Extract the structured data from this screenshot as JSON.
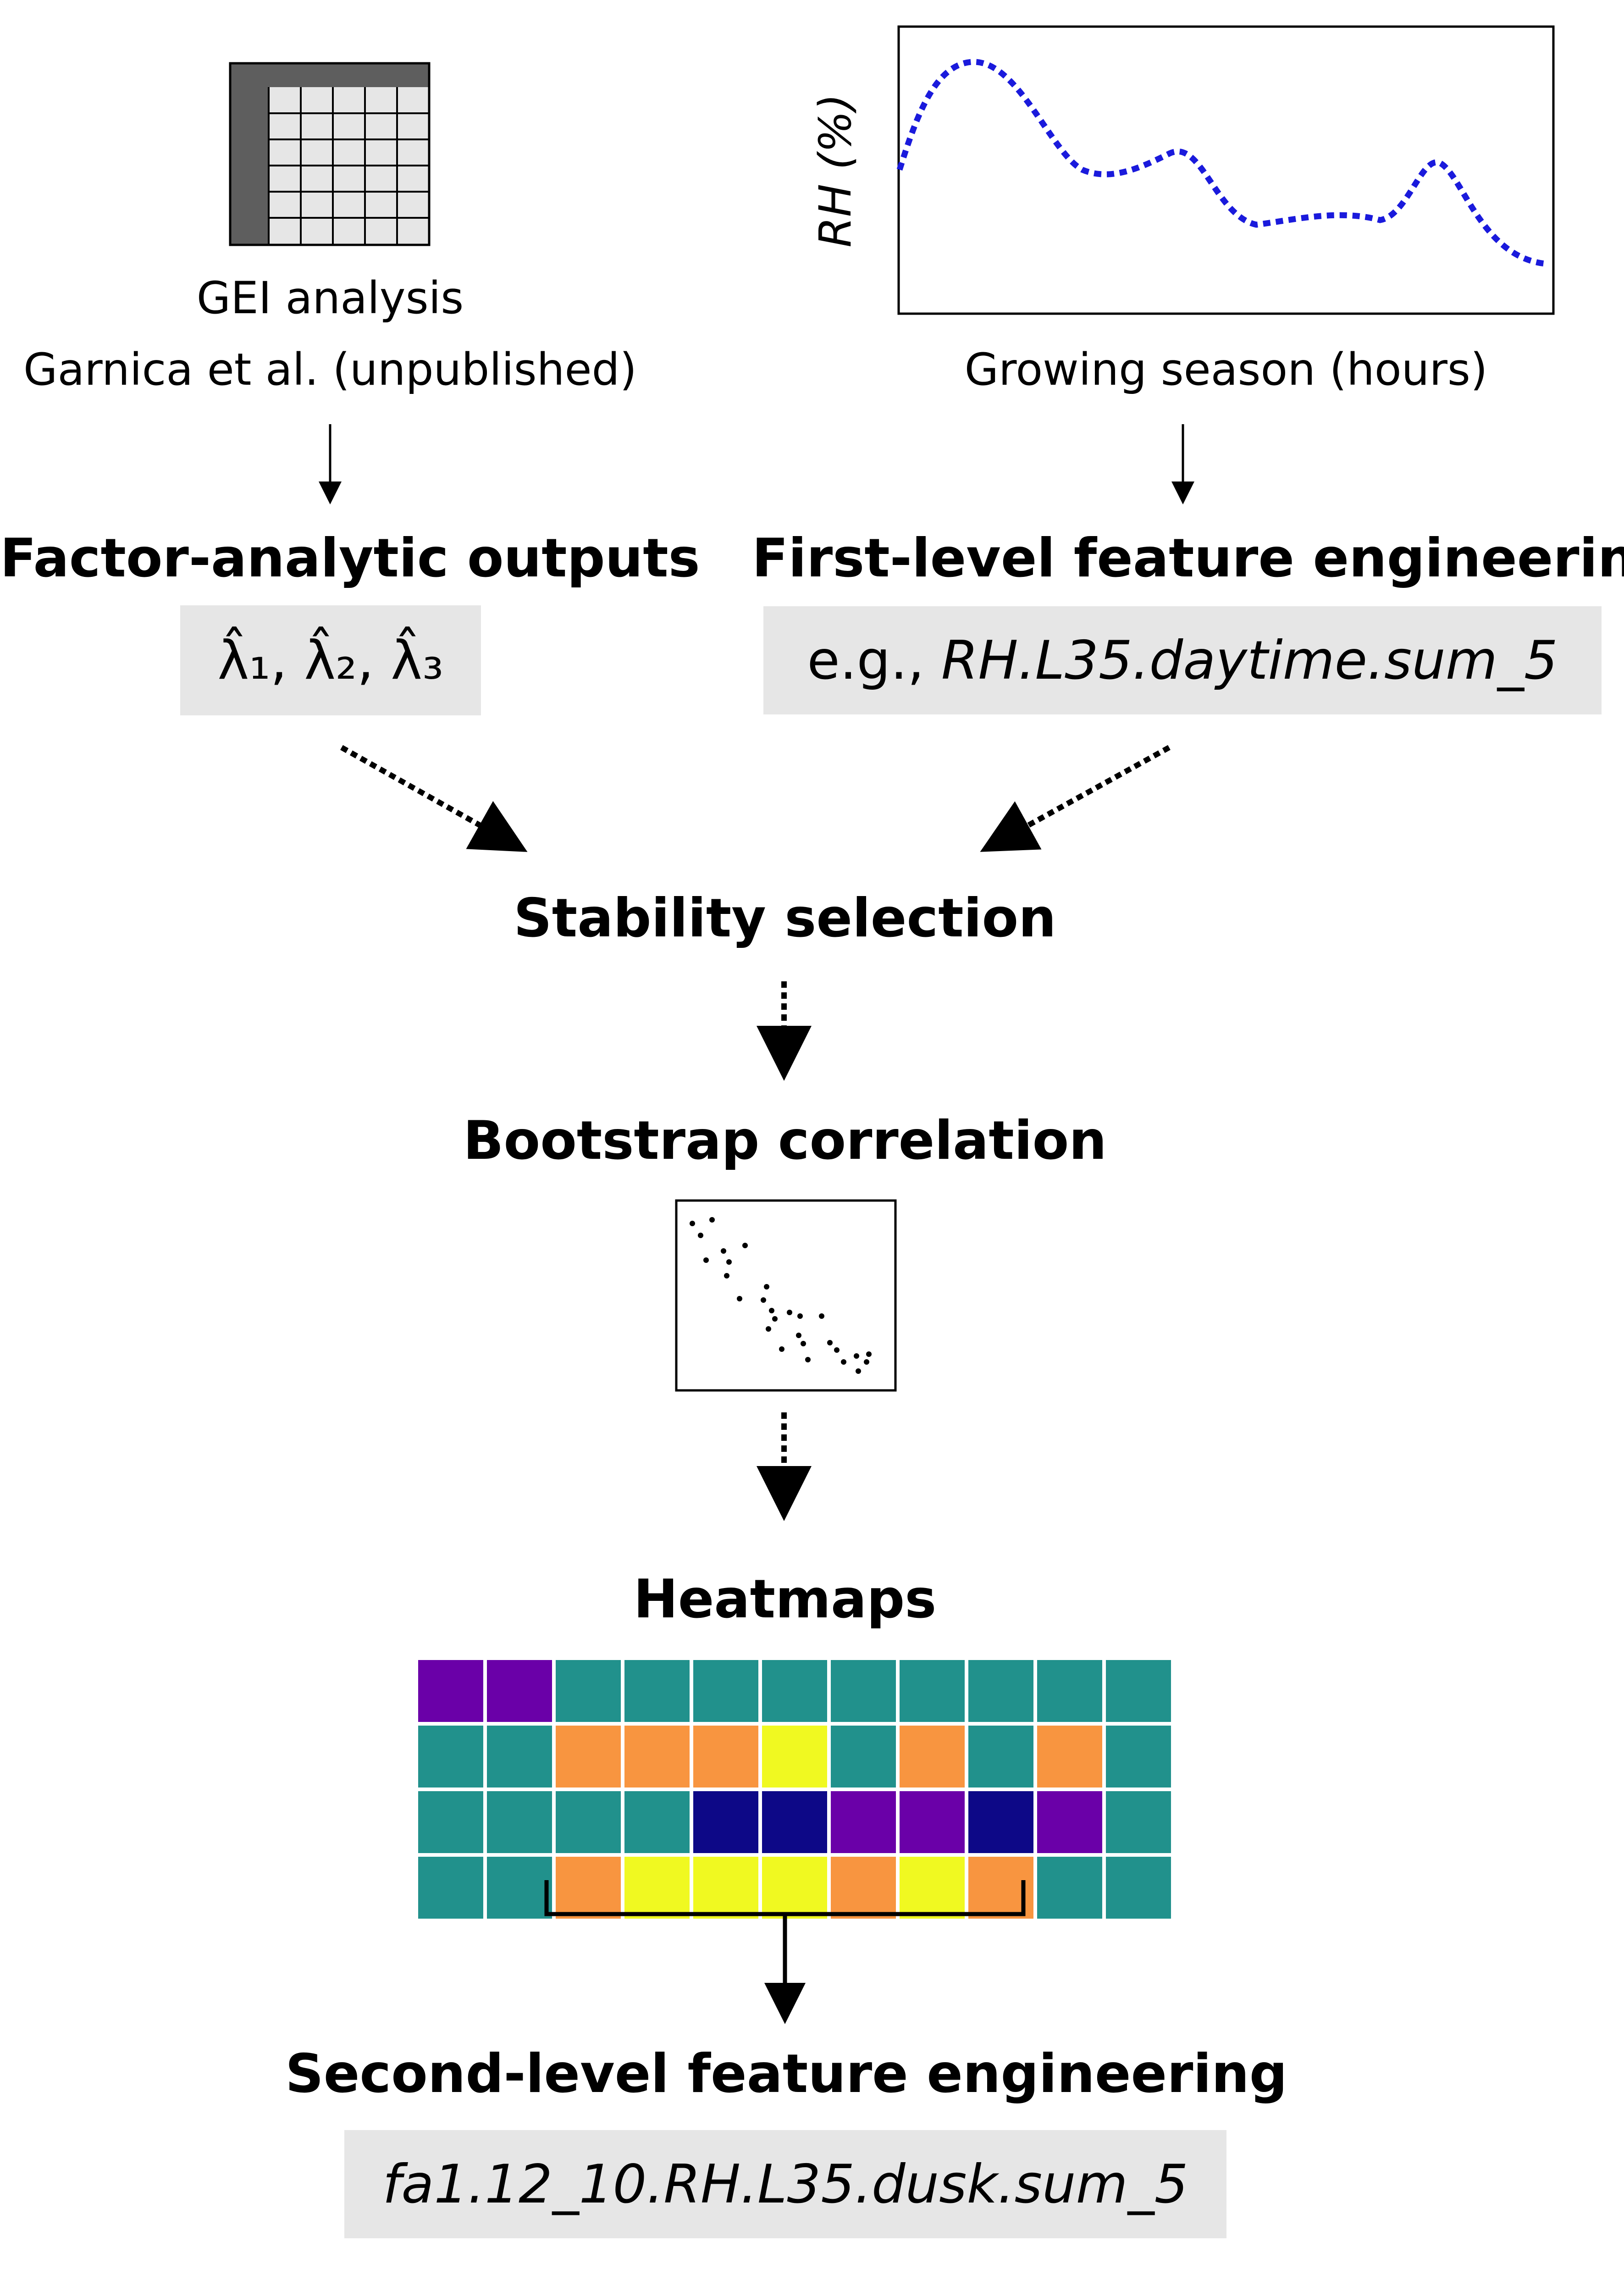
{
  "gei": {
    "title": "GEI analysis",
    "source": "Garnica et al. (unpublished)"
  },
  "rh_plot": {
    "ylabel": "RH (%)",
    "xlabel": "Growing season (hours)",
    "curve_color": "#1a1adc"
  },
  "factor_outputs": {
    "title": "Factor-analytic outputs",
    "formula": "λ̂₁, λ̂₂, λ̂₃"
  },
  "first_level": {
    "title": "First-level feature engineering",
    "prefix": "e.g., ",
    "example": "RH.L35.daytime.sum_5"
  },
  "stability": {
    "title": "Stability selection"
  },
  "bootstrap": {
    "title": "Bootstrap correlation"
  },
  "heatmaps": {
    "title": "Heatmaps",
    "palette": {
      "purple": "#6a00a8",
      "teal": "#21918c",
      "orange": "#f89540",
      "yellow": "#f0f921",
      "navy": "#0d0887"
    },
    "grid": [
      [
        "purple",
        "purple",
        "teal",
        "teal",
        "teal",
        "teal",
        "teal",
        "teal",
        "teal",
        "teal",
        "teal"
      ],
      [
        "teal",
        "teal",
        "orange",
        "orange",
        "orange",
        "yellow",
        "teal",
        "orange",
        "teal",
        "orange",
        "teal"
      ],
      [
        "teal",
        "teal",
        "teal",
        "teal",
        "navy",
        "navy",
        "purple",
        "purple",
        "navy",
        "purple",
        "teal"
      ],
      [
        "teal",
        "teal",
        "orange",
        "yellow",
        "yellow",
        "yellow",
        "orange",
        "yellow",
        "orange",
        "teal",
        "teal"
      ]
    ]
  },
  "second_level": {
    "title": "Second-level feature engineering",
    "example": "fa1.12_10.RH.L35.dusk.sum_5"
  },
  "chip_color": "#e6e6e6"
}
